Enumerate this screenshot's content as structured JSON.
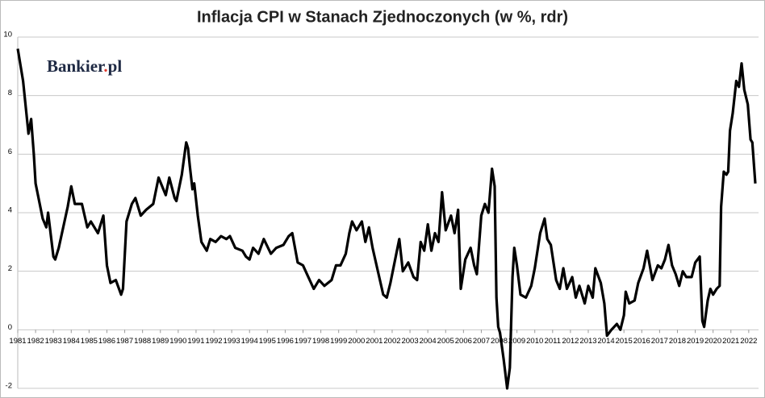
{
  "chart_data": {
    "type": "line",
    "title": "Inflacja CPI w Stanach Zjednoczonych (w %, rdr)",
    "logo": [
      "Bankier",
      ".",
      "pl"
    ],
    "xlim": [
      1981,
      2022.55
    ],
    "ylim": [
      -2,
      10
    ],
    "yticks": [
      -2,
      0,
      2,
      4,
      6,
      8,
      10
    ],
    "xticks": [
      1981,
      1982,
      1983,
      1984,
      1985,
      1986,
      1987,
      1988,
      1989,
      1990,
      1991,
      1992,
      1993,
      1994,
      1995,
      1996,
      1997,
      1998,
      1999,
      2000,
      2001,
      2002,
      2003,
      2004,
      2005,
      2006,
      2007,
      2008,
      2009,
      2010,
      2011,
      2012,
      2013,
      2014,
      2015,
      2016,
      2017,
      2018,
      2019,
      2020,
      2021,
      2022
    ],
    "grid": true,
    "series": [
      {
        "color": "#000000",
        "x": [
          1981.0,
          1981.3,
          1981.6,
          1981.75,
          1981.9,
          1982.0,
          1982.4,
          1982.6,
          1982.7,
          1983.0,
          1983.1,
          1983.3,
          1983.8,
          1984.0,
          1984.2,
          1984.6,
          1984.9,
          1985.1,
          1985.5,
          1985.8,
          1986.0,
          1986.2,
          1986.5,
          1986.8,
          1986.9,
          1987.1,
          1987.4,
          1987.6,
          1987.9,
          1988.2,
          1988.6,
          1988.9,
          1989.3,
          1989.5,
          1989.8,
          1989.9,
          1990.2,
          1990.4,
          1990.45,
          1990.55,
          1990.65,
          1990.8,
          1990.9,
          1991.1,
          1991.3,
          1991.6,
          1991.8,
          1992.1,
          1992.4,
          1992.7,
          1992.9,
          1993.2,
          1993.6,
          1993.8,
          1994.0,
          1994.2,
          1994.5,
          1994.8,
          1995.2,
          1995.5,
          1995.9,
          1996.2,
          1996.4,
          1996.7,
          1997.0,
          1997.3,
          1997.6,
          1997.9,
          1998.2,
          1998.6,
          1998.85,
          1999.1,
          1999.4,
          1999.6,
          1999.75,
          2000.0,
          2000.3,
          2000.5,
          2000.7,
          2000.9,
          2001.2,
          2001.5,
          2001.7,
          2001.9,
          2002.2,
          2002.4,
          2002.6,
          2002.9,
          2003.2,
          2003.4,
          2003.6,
          2003.8,
          2004.0,
          2004.2,
          2004.4,
          2004.6,
          2004.8,
          2005.0,
          2005.3,
          2005.5,
          2005.7,
          2005.85,
          2006.1,
          2006.4,
          2006.6,
          2006.75,
          2007.0,
          2007.2,
          2007.4,
          2007.6,
          2007.75,
          2007.85,
          2007.95,
          2008.05,
          2008.25,
          2008.45,
          2008.6,
          2008.75,
          2008.85,
          2009.0,
          2009.2,
          2009.5,
          2009.8,
          2010.0,
          2010.3,
          2010.55,
          2010.7,
          2010.9,
          2011.2,
          2011.4,
          2011.6,
          2011.8,
          2012.1,
          2012.3,
          2012.5,
          2012.8,
          2013.0,
          2013.25,
          2013.4,
          2013.7,
          2013.9,
          2014.05,
          2014.3,
          2014.6,
          2014.8,
          2015.0,
          2015.1,
          2015.3,
          2015.6,
          2015.8,
          2016.1,
          2016.3,
          2016.6,
          2016.9,
          2017.1,
          2017.3,
          2017.5,
          2017.7,
          2017.9,
          2018.1,
          2018.3,
          2018.5,
          2018.8,
          2019.0,
          2019.25,
          2019.4,
          2019.5,
          2019.7,
          2019.85,
          2020.0,
          2020.2,
          2020.37,
          2020.45,
          2020.6,
          2020.75,
          2020.85,
          2020.95,
          2021.1,
          2021.3,
          2021.45,
          2021.6,
          2021.75,
          2021.95,
          2022.1,
          2022.2,
          2022.37
        ],
        "values": [
          9.6,
          8.5,
          6.7,
          7.2,
          6.0,
          5.0,
          3.8,
          3.5,
          4.0,
          2.5,
          2.4,
          2.8,
          4.2,
          4.9,
          4.3,
          4.3,
          3.5,
          3.7,
          3.3,
          3.9,
          2.2,
          1.6,
          1.7,
          1.2,
          1.4,
          3.7,
          4.3,
          4.5,
          3.9,
          4.1,
          4.3,
          5.2,
          4.6,
          5.2,
          4.5,
          4.4,
          5.3,
          6.2,
          6.4,
          6.2,
          5.6,
          4.8,
          5.0,
          3.9,
          3.0,
          2.7,
          3.1,
          3.0,
          3.2,
          3.1,
          3.2,
          2.8,
          2.7,
          2.5,
          2.4,
          2.8,
          2.6,
          3.1,
          2.6,
          2.8,
          2.9,
          3.2,
          3.3,
          2.3,
          2.2,
          1.8,
          1.4,
          1.7,
          1.5,
          1.7,
          2.2,
          2.2,
          2.6,
          3.3,
          3.7,
          3.4,
          3.7,
          3.0,
          3.5,
          2.8,
          2.0,
          1.2,
          1.1,
          1.6,
          2.5,
          3.1,
          2.0,
          2.3,
          1.8,
          1.7,
          3.0,
          2.7,
          3.6,
          2.7,
          3.3,
          3.0,
          4.7,
          3.4,
          3.9,
          3.3,
          4.1,
          1.4,
          2.4,
          2.8,
          2.2,
          1.9,
          3.9,
          4.3,
          4.0,
          5.5,
          4.9,
          1.1,
          0.1,
          -0.1,
          -1.0,
          -2.0,
          -1.3,
          1.8,
          2.8,
          2.2,
          1.2,
          1.1,
          1.5,
          2.1,
          3.3,
          3.8,
          3.1,
          2.9,
          1.7,
          1.4,
          2.1,
          1.4,
          1.8,
          1.1,
          1.5,
          0.9,
          1.5,
          1.1,
          2.1,
          1.6,
          0.9,
          -0.2,
          0.0,
          0.2,
          0.0,
          0.5,
          1.3,
          0.9,
          1.0,
          1.6,
          2.1,
          2.7,
          1.7,
          2.2,
          2.1,
          2.4,
          2.9,
          2.2,
          1.9,
          1.5,
          2.0,
          1.8,
          1.8,
          2.3,
          2.5,
          0.3,
          0.1,
          1.0,
          1.4,
          1.2,
          1.4,
          1.5,
          4.2,
          5.4,
          5.3,
          5.4,
          6.8,
          7.4,
          8.5,
          8.3,
          9.1,
          8.2,
          7.7,
          6.5,
          6.4,
          5.0
        ]
      }
    ]
  }
}
